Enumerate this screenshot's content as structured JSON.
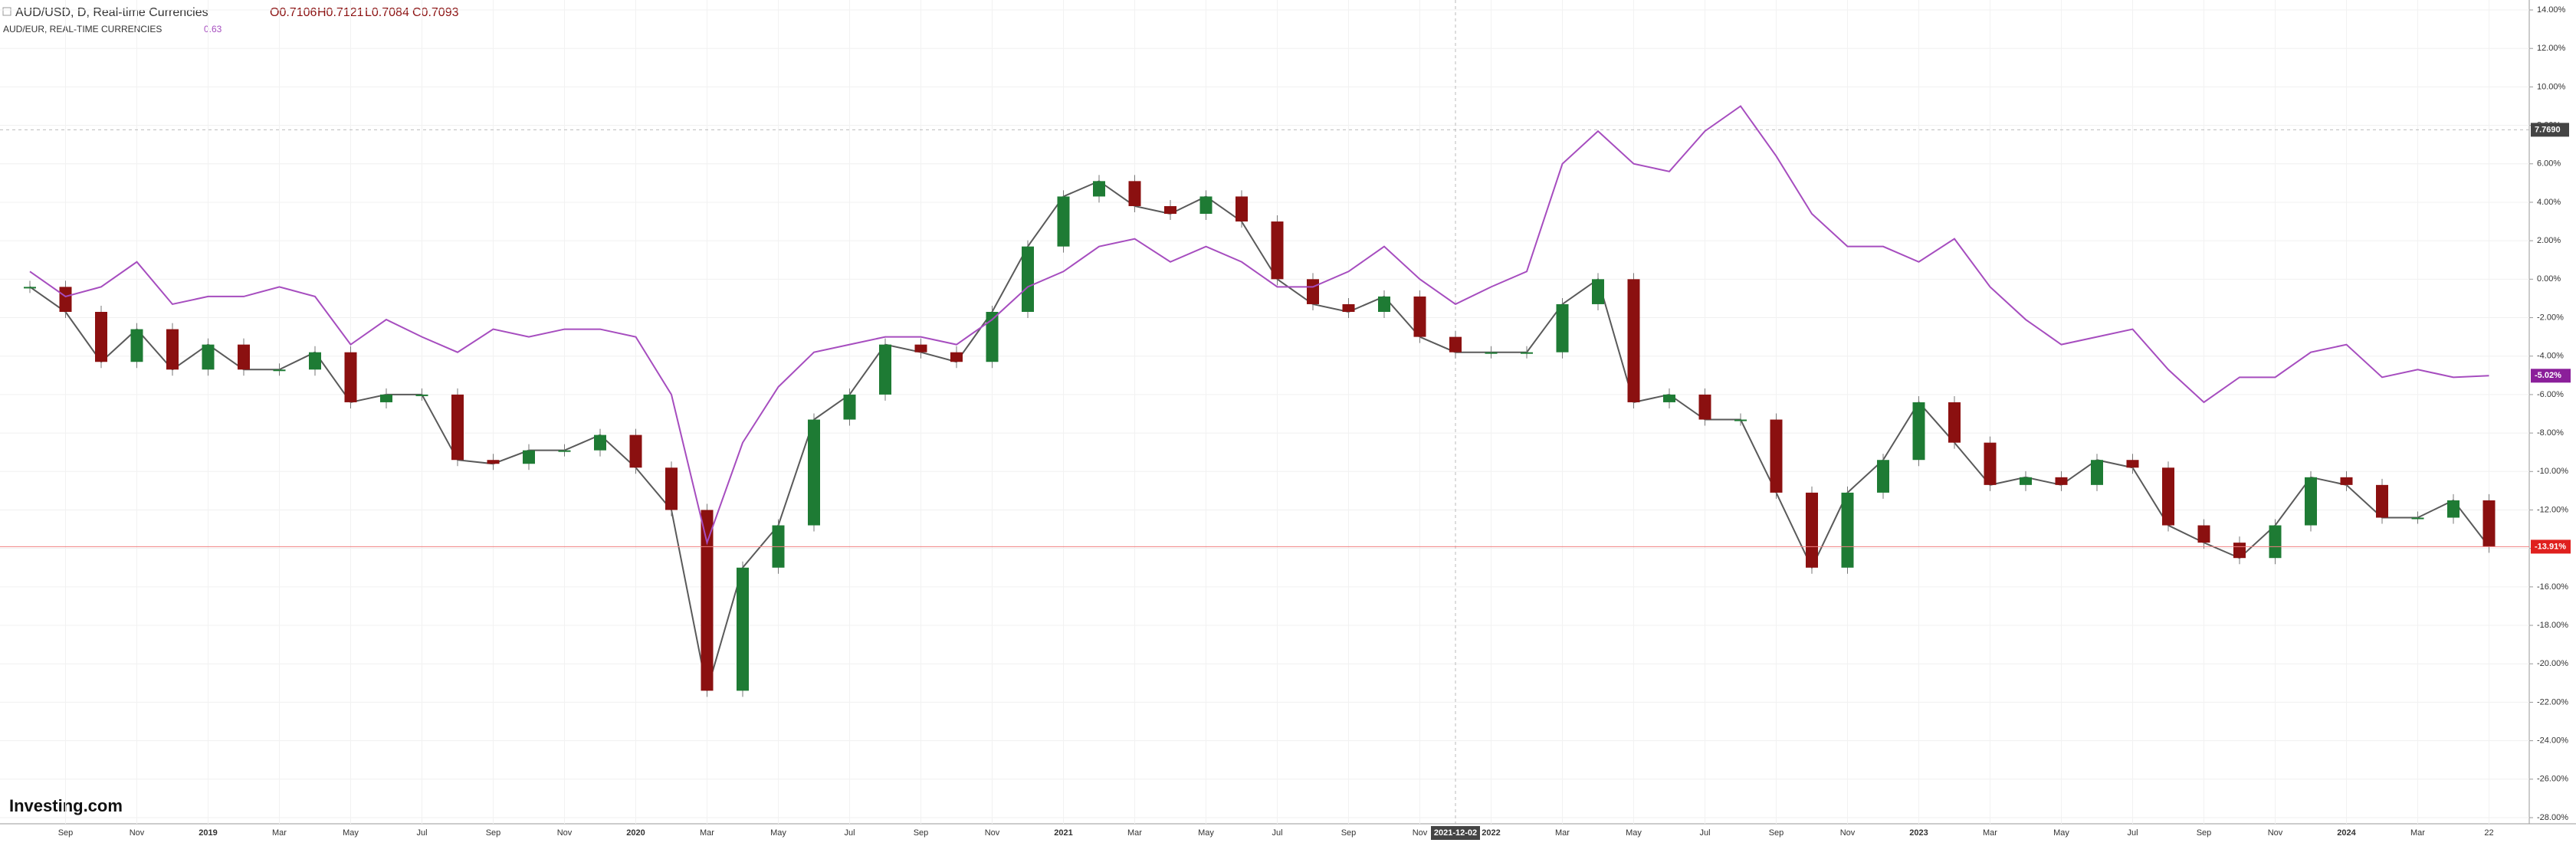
{
  "chart_data": {
    "type": "line",
    "header": {
      "symbol": "AUD/USD, D, Real-time Currencies",
      "open": "O0.7106",
      "high": "H0.7121",
      "low": "L0.7084",
      "close": "C0.7093"
    },
    "overlay_header": {
      "symbol": "AUD/EUR, REAL-TIME CURRENCIES",
      "value": "0.63"
    },
    "logo": "Investing.com",
    "categories": [
      null,
      "Sep",
      null,
      "Nov",
      null,
      "2019",
      null,
      "Mar",
      null,
      "May",
      null,
      "Jul",
      null,
      "Sep",
      null,
      "Nov",
      null,
      "2020",
      null,
      "Mar",
      null,
      "May",
      null,
      "Jul",
      null,
      "Sep",
      null,
      "Nov",
      null,
      "2021",
      null,
      "Mar",
      null,
      "May",
      null,
      "Jul",
      null,
      "Sep",
      null,
      "Nov",
      null,
      "2022",
      null,
      "Mar",
      null,
      "May",
      null,
      "Jul",
      null,
      "Sep",
      null,
      "Nov",
      null,
      "2023",
      null,
      "Mar",
      null,
      "May",
      null,
      "Jul",
      null,
      "Sep",
      null,
      "Nov",
      null,
      "2024",
      null,
      "Mar",
      null,
      "22"
    ],
    "series": [
      {
        "name": "AUD/USD",
        "style": "candles",
        "up_color": "#1e7b34",
        "down_color": "#8b1010",
        "color": "#8b1010",
        "last_label": "-13.91%",
        "values": [
          -0.4,
          -1.7,
          -4.3,
          -2.6,
          -4.7,
          -3.4,
          -4.7,
          -4.7,
          -3.8,
          -6.4,
          -6.0,
          -6.0,
          -9.4,
          -9.6,
          -8.9,
          -8.9,
          -8.1,
          -9.8,
          -12.0,
          -21.4,
          -15.0,
          -12.8,
          -7.3,
          -6.0,
          -3.4,
          -3.8,
          -4.3,
          -1.7,
          1.7,
          4.3,
          5.1,
          3.8,
          3.4,
          4.3,
          3.0,
          0,
          -1.3,
          -1.7,
          -0.9,
          -3.0,
          -3.8,
          -3.8,
          -3.8,
          -1.3,
          0,
          -6.4,
          -6.0,
          -7.3,
          -7.3,
          -11.1,
          -15.0,
          -11.1,
          -9.4,
          -6.4,
          -8.5,
          -10.7,
          -10.3,
          -10.7,
          -9.4,
          -9.8,
          -12.8,
          -13.7,
          -14.5,
          -12.8,
          -10.3,
          -10.7,
          -12.4,
          -12.4,
          -11.5,
          -13.91
        ]
      },
      {
        "name": "AUD/EUR",
        "style": "line",
        "color": "#a64dbf",
        "last_label": "-5.02%",
        "values": [
          0.4,
          -0.9,
          -0.4,
          0.9,
          -1.3,
          -0.9,
          -0.9,
          -0.4,
          -0.9,
          -3.4,
          -2.1,
          -3.0,
          -3.8,
          -2.6,
          -3.0,
          -2.6,
          -2.6,
          -3.0,
          -6.0,
          -13.7,
          -8.5,
          -5.6,
          -3.8,
          -3.4,
          -3.0,
          -3.0,
          -3.4,
          -2.1,
          -0.4,
          0.4,
          1.7,
          2.1,
          0.9,
          1.7,
          0.9,
          -0.4,
          -0.4,
          0.4,
          1.7,
          0,
          -1.3,
          -0.4,
          0.4,
          6.0,
          7.7,
          6.0,
          5.6,
          7.7,
          9.0,
          6.4,
          3.4,
          1.7,
          1.7,
          0.9,
          2.1,
          -0.4,
          -2.1,
          -3.4,
          -3.0,
          -2.6,
          -4.7,
          -6.4,
          -5.1,
          -5.1,
          -3.8,
          -3.4,
          -5.1,
          -4.7,
          -5.1,
          -5.02
        ]
      }
    ],
    "ylim": [
      -28,
      14
    ],
    "yticks": [
      {
        "value": 14,
        "label": "14.00%"
      },
      {
        "value": 12,
        "label": "12.00%"
      },
      {
        "value": 10,
        "label": "10.00%"
      },
      {
        "value": 8,
        "label": "8.00%"
      },
      {
        "value": 6,
        "label": "6.00%"
      },
      {
        "value": 4,
        "label": "4.00%"
      },
      {
        "value": 2,
        "label": "2.00%"
      },
      {
        "value": 0,
        "label": "0.00%"
      },
      {
        "value": -2,
        "label": "-2.00%"
      },
      {
        "value": -4,
        "label": "-4.00%"
      },
      {
        "value": -6,
        "label": "-6.00%"
      },
      {
        "value": -8,
        "label": "-8.00%"
      },
      {
        "value": -10,
        "label": "-10.00%"
      },
      {
        "value": -12,
        "label": "-12.00%"
      },
      {
        "value": -14,
        "label": "-14.00%"
      },
      {
        "value": -16,
        "label": "-16.00%"
      },
      {
        "value": -18,
        "label": "-18.00%"
      },
      {
        "value": -20,
        "label": "-20.00%"
      },
      {
        "value": -22,
        "label": "-22.00%"
      },
      {
        "value": -24,
        "label": "-24.00%"
      },
      {
        "value": -26,
        "label": "-26.00%"
      },
      {
        "value": -28,
        "label": "-28.00%"
      }
    ],
    "grid": true,
    "crosshair": {
      "x": 40,
      "x_label": "2021-12-02",
      "y": 7.769,
      "y_label": "7.7690"
    }
  }
}
